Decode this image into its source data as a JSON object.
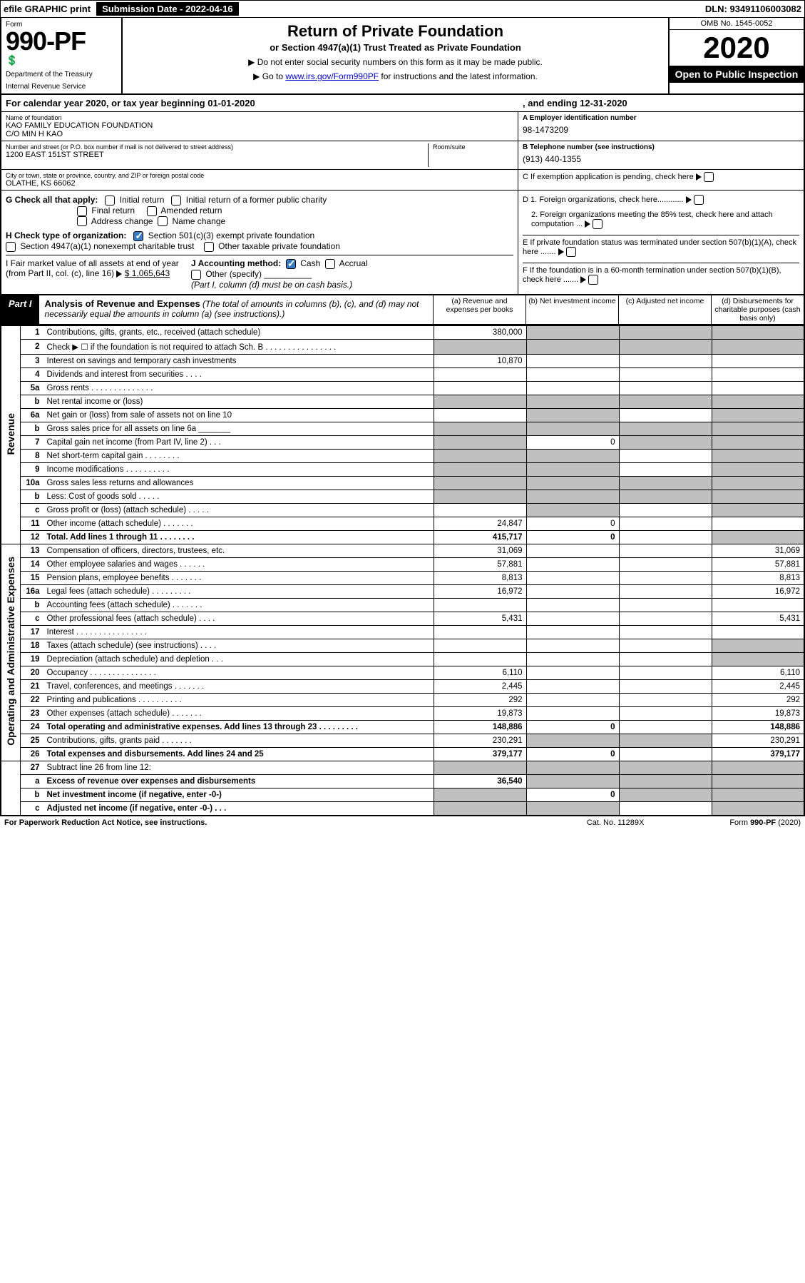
{
  "top": {
    "efile": "efile GRAPHIC print",
    "subdate_label": "Submission Date - 2022-04-16",
    "dln": "DLN: 93491106003082"
  },
  "header": {
    "form_word": "Form",
    "form_num": "990-PF",
    "dept": "Department of the Treasury",
    "irs": "Internal Revenue Service",
    "title": "Return of Private Foundation",
    "subtitle": "or Section 4947(a)(1) Trust Treated as Private Foundation",
    "instr1": "▶ Do not enter social security numbers on this form as it may be made public.",
    "instr2_pre": "▶ Go to ",
    "instr2_link": "www.irs.gov/Form990PF",
    "instr2_post": " for instructions and the latest information.",
    "omb": "OMB No. 1545-0052",
    "year": "2020",
    "open": "Open to Public Inspection"
  },
  "calendar": {
    "text_a": "For calendar year 2020, or tax year beginning 01-01-2020",
    "text_b": ", and ending 12-31-2020"
  },
  "idblock": {
    "name_label": "Name of foundation",
    "name": "KAO FAMILY EDUCATION FOUNDATION",
    "co": "C/O MIN H KAO",
    "addr_label": "Number and street (or P.O. box number if mail is not delivered to street address)",
    "addr": "1200 EAST 151ST STREET",
    "room_label": "Room/suite",
    "city_label": "City or town, state or province, country, and ZIP or foreign postal code",
    "city": "OLATHE, KS  66062",
    "ein_label": "A Employer identification number",
    "ein": "98-1473209",
    "phone_label": "B Telephone number (see instructions)",
    "phone": "(913) 440-1355",
    "c_label": "C If exemption application is pending, check here"
  },
  "checks": {
    "g_label": "G Check all that apply:",
    "g1": "Initial return",
    "g2": "Initial return of a former public charity",
    "g3": "Final return",
    "g4": "Amended return",
    "g5": "Address change",
    "g6": "Name change",
    "h_label": "H Check type of organization:",
    "h1": "Section 501(c)(3) exempt private foundation",
    "h2": "Section 4947(a)(1) nonexempt charitable trust",
    "h3": "Other taxable private foundation",
    "i_label": "I Fair market value of all assets at end of year (from Part II, col. (c), line 16)",
    "i_val": "$  1,065,643",
    "j_label": "J Accounting method:",
    "j1": "Cash",
    "j2": "Accrual",
    "j3": "Other (specify)",
    "j_note": "(Part I, column (d) must be on cash basis.)",
    "d1": "D 1. Foreign organizations, check here............",
    "d2": "2. Foreign organizations meeting the 85% test, check here and attach computation ...",
    "e": "E  If private foundation status was terminated under section 507(b)(1)(A), check here .......",
    "f": "F  If the foundation is in a 60-month termination under section 507(b)(1)(B), check here ......."
  },
  "part1": {
    "label": "Part I",
    "title": "Analysis of Revenue and Expenses",
    "title_note": " (The total of amounts in columns (b), (c), and (d) may not necessarily equal the amounts in column (a) (see instructions).)",
    "col_a": "(a) Revenue and expenses per books",
    "col_b": "(b) Net investment income",
    "col_c": "(c) Adjusted net income",
    "col_d": "(d) Disbursements for charitable purposes (cash basis only)"
  },
  "sections": {
    "revenue": "Revenue",
    "expenses": "Operating and Administrative Expenses"
  },
  "lines": [
    {
      "n": "1",
      "label": "Contributions, gifts, grants, etc., received (attach schedule)",
      "a": "380,000",
      "shade_b": true,
      "shade_c": true,
      "shade_d": true
    },
    {
      "n": "2",
      "label": "Check ▶ ☐ if the foundation is not required to attach Sch. B  .  .  .  .  .  .  .  .  .  .  .  .  .  .  .  .",
      "shade_a": true,
      "shade_b": true,
      "shade_c": true,
      "shade_d": true
    },
    {
      "n": "3",
      "label": "Interest on savings and temporary cash investments",
      "a": "10,870"
    },
    {
      "n": "4",
      "label": "Dividends and interest from securities  .  .  .  ."
    },
    {
      "n": "5a",
      "label": "Gross rents  .  .  .  .  .  .  .  .  .  .  .  .  .  ."
    },
    {
      "n": "b",
      "label": "Net rental income or (loss)",
      "shade_a": true,
      "shade_b": true,
      "shade_c": true,
      "shade_d": true
    },
    {
      "n": "6a",
      "label": "Net gain or (loss) from sale of assets not on line 10",
      "shade_b": true,
      "shade_d": true
    },
    {
      "n": "b",
      "label": "Gross sales price for all assets on line 6a _______",
      "shade_a": true,
      "shade_b": true,
      "shade_c": true,
      "shade_d": true
    },
    {
      "n": "7",
      "label": "Capital gain net income (from Part IV, line 2)  .  .  .",
      "shade_a": true,
      "b": "0",
      "shade_c": true,
      "shade_d": true
    },
    {
      "n": "8",
      "label": "Net short-term capital gain  .  .  .  .  .  .  .  .",
      "shade_a": true,
      "shade_b": true,
      "shade_d": true
    },
    {
      "n": "9",
      "label": "Income modifications  .  .  .  .  .  .  .  .  .  .",
      "shade_a": true,
      "shade_b": true,
      "shade_d": true
    },
    {
      "n": "10a",
      "label": "Gross sales less returns and allowances",
      "shade_a": true,
      "shade_b": true,
      "shade_c": true,
      "shade_d": true
    },
    {
      "n": "b",
      "label": "Less: Cost of goods sold  .  .  .  .  .",
      "shade_a": true,
      "shade_b": true,
      "shade_c": true,
      "shade_d": true
    },
    {
      "n": "c",
      "label": "Gross profit or (loss) (attach schedule)  .  .  .  .  .",
      "shade_b": true,
      "shade_d": true
    },
    {
      "n": "11",
      "label": "Other income (attach schedule)  .  .  .  .  .  .  .",
      "a": "24,847",
      "b": "0"
    },
    {
      "n": "12",
      "label": "Total. Add lines 1 through 11  .  .  .  .  .  .  .  .",
      "a": "415,717",
      "b": "0",
      "shade_d": true,
      "bold": true
    }
  ],
  "exp_lines": [
    {
      "n": "13",
      "label": "Compensation of officers, directors, trustees, etc.",
      "a": "31,069",
      "d": "31,069"
    },
    {
      "n": "14",
      "label": "Other employee salaries and wages  .  .  .  .  .  .",
      "a": "57,881",
      "d": "57,881"
    },
    {
      "n": "15",
      "label": "Pension plans, employee benefits  .  .  .  .  .  .  .",
      "a": "8,813",
      "d": "8,813"
    },
    {
      "n": "16a",
      "label": "Legal fees (attach schedule)  .  .  .  .  .  .  .  .  .",
      "a": "16,972",
      "d": "16,972"
    },
    {
      "n": "b",
      "label": "Accounting fees (attach schedule)  .  .  .  .  .  .  ."
    },
    {
      "n": "c",
      "label": "Other professional fees (attach schedule)  .  .  .  .",
      "a": "5,431",
      "d": "5,431"
    },
    {
      "n": "17",
      "label": "Interest  .  .  .  .  .  .  .  .  .  .  .  .  .  .  .  ."
    },
    {
      "n": "18",
      "label": "Taxes (attach schedule) (see instructions)  .  .  .  .",
      "shade_d": true
    },
    {
      "n": "19",
      "label": "Depreciation (attach schedule) and depletion  .  .  .",
      "shade_d": true
    },
    {
      "n": "20",
      "label": "Occupancy  .  .  .  .  .  .  .  .  .  .  .  .  .  .  .",
      "a": "6,110",
      "d": "6,110"
    },
    {
      "n": "21",
      "label": "Travel, conferences, and meetings  .  .  .  .  .  .  .",
      "a": "2,445",
      "d": "2,445"
    },
    {
      "n": "22",
      "label": "Printing and publications  .  .  .  .  .  .  .  .  .  .",
      "a": "292",
      "d": "292"
    },
    {
      "n": "23",
      "label": "Other expenses (attach schedule)  .  .  .  .  .  .  .",
      "a": "19,873",
      "d": "19,873"
    },
    {
      "n": "24",
      "label": "Total operating and administrative expenses. Add lines 13 through 23  .  .  .  .  .  .  .  .  .",
      "a": "148,886",
      "b": "0",
      "d": "148,886",
      "bold": true
    },
    {
      "n": "25",
      "label": "Contributions, gifts, grants paid  .  .  .  .  .  .  .",
      "a": "230,291",
      "shade_b": true,
      "shade_c": true,
      "d": "230,291"
    },
    {
      "n": "26",
      "label": "Total expenses and disbursements. Add lines 24 and 25",
      "a": "379,177",
      "b": "0",
      "d": "379,177",
      "bold": true
    }
  ],
  "net_lines": [
    {
      "n": "27",
      "label": "Subtract line 26 from line 12:",
      "shade_a": true,
      "shade_b": true,
      "shade_c": true,
      "shade_d": true
    },
    {
      "n": "a",
      "label": "Excess of revenue over expenses and disbursements",
      "a": "36,540",
      "shade_b": true,
      "shade_c": true,
      "shade_d": true,
      "bold": true
    },
    {
      "n": "b",
      "label": "Net investment income (if negative, enter -0-)",
      "shade_a": true,
      "b": "0",
      "shade_c": true,
      "shade_d": true,
      "bold": true
    },
    {
      "n": "c",
      "label": "Adjusted net income (if negative, enter -0-)  .  .  .",
      "shade_a": true,
      "shade_b": true,
      "shade_d": true,
      "bold": true
    }
  ],
  "footer": {
    "left": "For Paperwork Reduction Act Notice, see instructions.",
    "mid": "Cat. No. 11289X",
    "right": "Form 990-PF (2020)"
  }
}
